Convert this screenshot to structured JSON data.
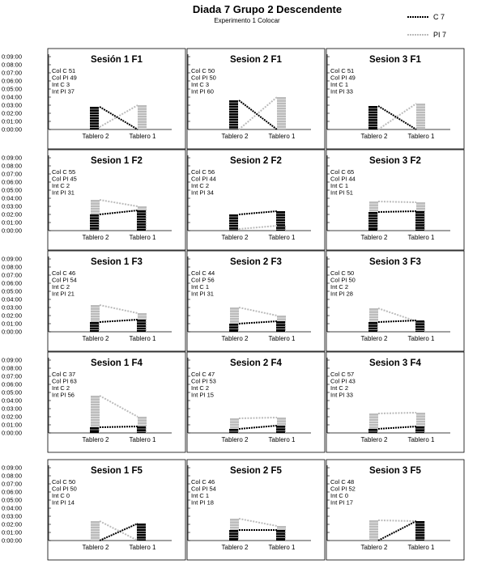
{
  "title": "Diada 7 Grupo 2 Descendente",
  "subtitle": "Experimento 1 Colocar",
  "legend": [
    {
      "label": "C 7",
      "color": "#000000"
    },
    {
      "label": "PI 7",
      "color": "#bbbbbb"
    }
  ],
  "chart_data": {
    "type": "bar",
    "categories": [
      "Tablero 2",
      "Tablero 1"
    ],
    "y_ticks": [
      "0:00:00",
      "0:01:00",
      "0:02:00",
      "0:03:00",
      "0:04:00",
      "0:05:00",
      "0:06:00",
      "0:07:00",
      "0:08:00",
      "0:09:00"
    ],
    "ylim_minutes": [
      0,
      9
    ],
    "series_colors": {
      "C": "#000000",
      "PI": "#bbbbbb"
    },
    "panels": [
      {
        "title": "Sesión 1 F1",
        "notes": [
          "Col C 51",
          "Col PI 49",
          "Int C 3",
          "Int PI 37"
        ],
        "C": [
          2.8,
          0
        ],
        "PI": [
          0.3,
          3.0
        ]
      },
      {
        "title": "Sesion 2 F1",
        "notes": [
          "Col C 50",
          "Col PI 50",
          "Int C 3",
          "Int PI 60"
        ],
        "C": [
          3.6,
          0
        ],
        "PI": [
          0,
          4.0
        ]
      },
      {
        "title": "Sesion 3 F1",
        "notes": [
          "Col C 51",
          "Col PI 49",
          "Int C 1",
          "Int PI 33"
        ],
        "C": [
          2.9,
          0
        ],
        "PI": [
          0,
          3.2
        ]
      },
      {
        "title": "Sesion 1 F2",
        "notes": [
          "Col C 55",
          "Col PI 45",
          "Int C 2",
          "Int PI 31"
        ],
        "C": [
          2.0,
          2.5
        ],
        "PI": [
          3.8,
          3.0
        ]
      },
      {
        "title": "Sesion 2 F2",
        "notes": [
          "Col C 56",
          "Col PI 44",
          "Int C 2",
          "Int PI 34"
        ],
        "C": [
          2.0,
          2.4
        ],
        "PI": [
          0.2,
          0.6
        ]
      },
      {
        "title": "Sesion 3 F2",
        "notes": [
          "Col C 65",
          "Col PI 44",
          "Int C 1",
          "Int PI 51"
        ],
        "C": [
          2.3,
          2.4
        ],
        "PI": [
          3.6,
          3.5
        ]
      },
      {
        "title": "Sesion 1 F3",
        "notes": [
          "Col C 46",
          "Col PI 54",
          "Int C 2",
          "Int PI 21"
        ],
        "C": [
          1.2,
          1.5
        ],
        "PI": [
          3.3,
          2.3
        ]
      },
      {
        "title": "Sesion 2 F3",
        "notes": [
          "Col C 44",
          "Col P 56",
          "Int C 1",
          "Int PI 31"
        ],
        "C": [
          1.0,
          1.3
        ],
        "PI": [
          3.0,
          2.0
        ]
      },
      {
        "title": "Sesion 3 F3",
        "notes": [
          "Col C 50",
          "Col PI 50",
          "Int C 2",
          "Int PI 28"
        ],
        "C": [
          1.2,
          1.4
        ],
        "PI": [
          2.9,
          1.3
        ]
      },
      {
        "title": "Sesion 1 F4",
        "notes": [
          "Col C 37",
          "Col PI 63",
          "Int C 2",
          "Int PI 56"
        ],
        "C": [
          0.7,
          0.8
        ],
        "PI": [
          4.6,
          2.0
        ]
      },
      {
        "title": "Sesion 2 F4",
        "notes": [
          "Col C 47",
          "Col PI 53",
          "Int C 2",
          "Int PI 15"
        ],
        "C": [
          0.5,
          0.9
        ],
        "PI": [
          1.8,
          1.9
        ]
      },
      {
        "title": "Sesion 3 F4",
        "notes": [
          "Col C 57",
          "Col PI 43",
          "Int C 2",
          "Int PI 33"
        ],
        "C": [
          0.5,
          0.8
        ],
        "PI": [
          2.4,
          2.5
        ]
      },
      {
        "title": "Sesion 1 F5",
        "notes": [
          "Col C 50",
          "Col PI 50",
          "Int C 0",
          "Int PI 14"
        ],
        "C": [
          0,
          2.1
        ],
        "PI": [
          2.4,
          0
        ]
      },
      {
        "title": "Sesion 2 F5",
        "notes": [
          "Col C 46",
          "Col PI 54",
          "Int C 1",
          "Int PI 18"
        ],
        "C": [
          1.3,
          1.3
        ],
        "PI": [
          2.7,
          1.8
        ]
      },
      {
        "title": "Sesion 3 F5",
        "notes": [
          "Col C 48",
          "Col PI 52",
          "Int C 0",
          "Int PI 17"
        ],
        "C": [
          0,
          2.4
        ],
        "PI": [
          2.5,
          2.4
        ]
      }
    ]
  }
}
